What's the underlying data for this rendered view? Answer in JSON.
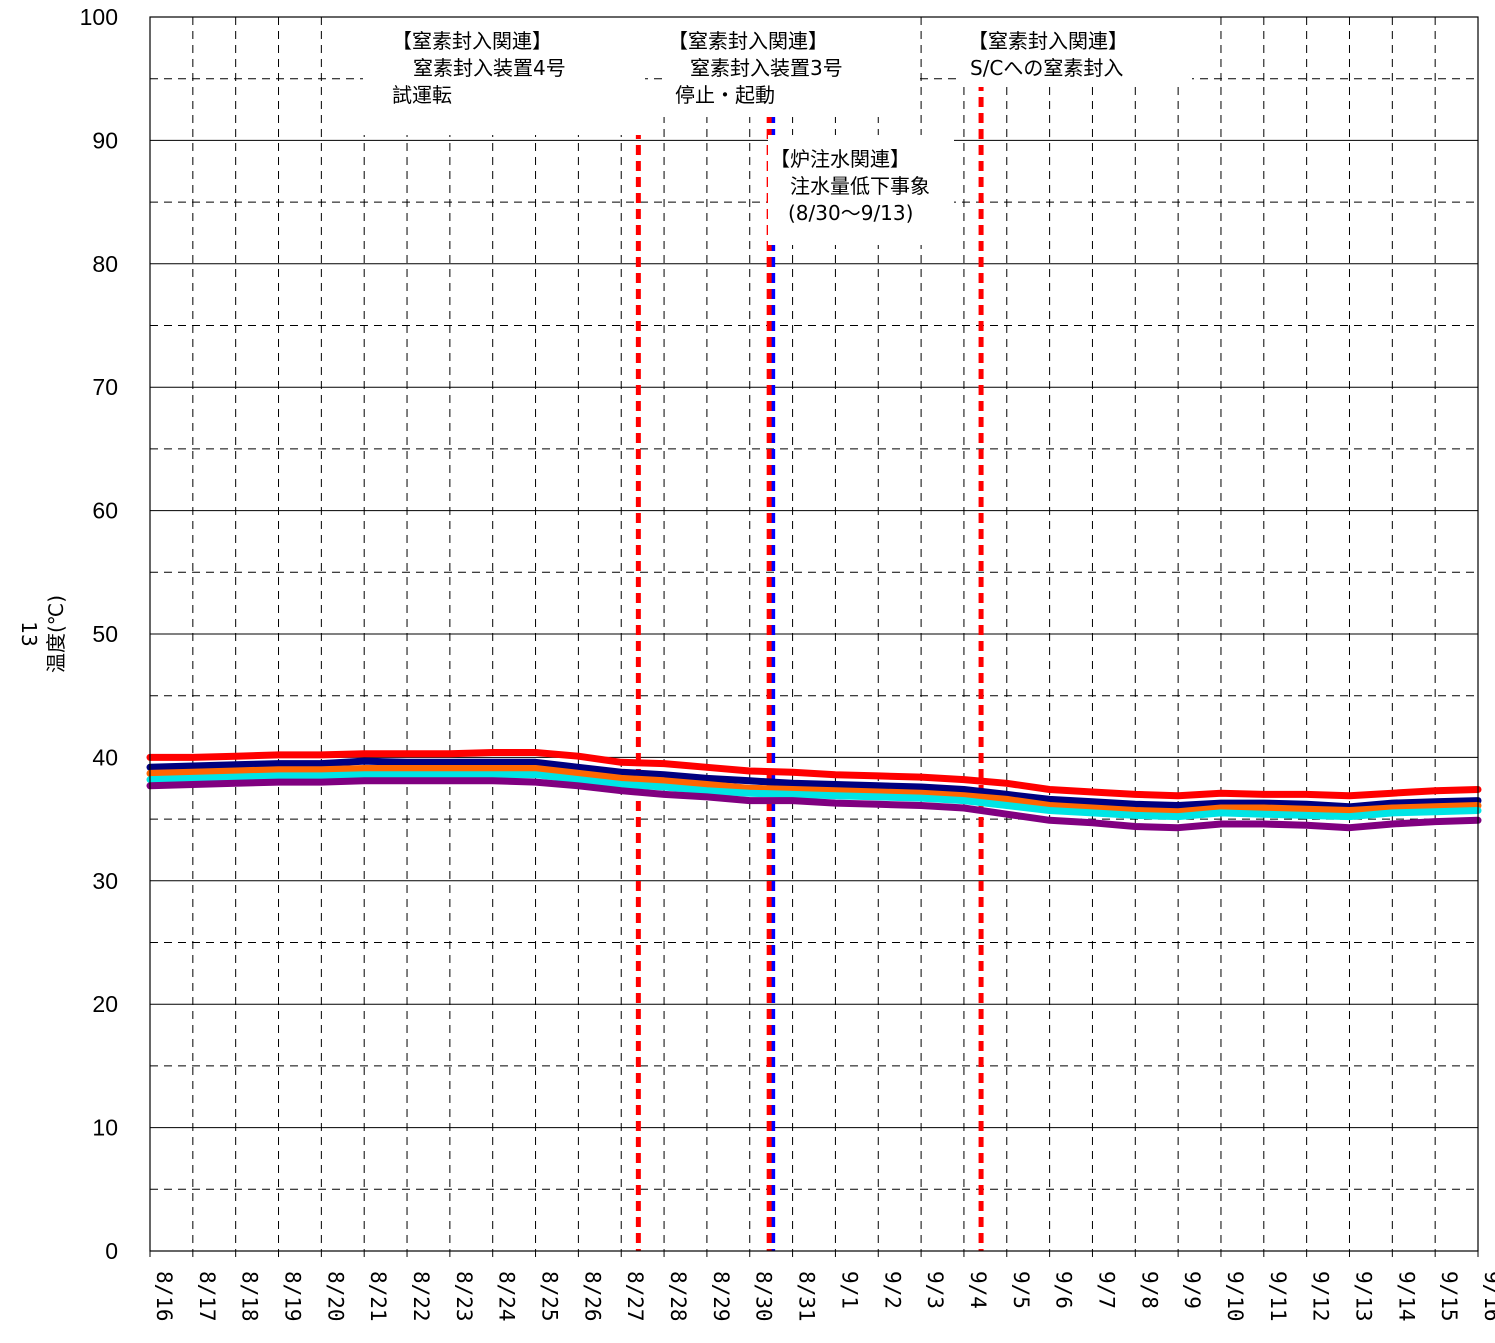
{
  "chart_data": {
    "type": "line",
    "title": "",
    "ylabel": "温度(℃)",
    "unit_number": "13",
    "ylim": [
      0,
      100
    ],
    "y_ticks": [
      "0",
      "10",
      "20",
      "30",
      "40",
      "50",
      "60",
      "70",
      "80",
      "90",
      "100"
    ],
    "x_ticks": [
      "8/16",
      "8/17",
      "8/18",
      "8/19",
      "8/20",
      "8/21",
      "8/22",
      "8/23",
      "8/24",
      "8/25",
      "8/26",
      "8/27",
      "8/28",
      "8/29",
      "8/30",
      "8/31",
      "9/1",
      "9/2",
      "9/3",
      "9/4",
      "9/5",
      "9/6",
      "9/7",
      "9/8",
      "9/9",
      "9/10",
      "9/11",
      "9/12",
      "9/13",
      "9/14",
      "9/15",
      "9/16"
    ],
    "grid": true,
    "series": [
      {
        "color": "#ff0000",
        "values": [
          40.0,
          40.0,
          40.1,
          40.2,
          40.2,
          40.3,
          40.3,
          40.3,
          40.4,
          40.4,
          40.1,
          39.6,
          39.5,
          39.2,
          38.9,
          38.8,
          38.6,
          38.5,
          38.4,
          38.2,
          37.9,
          37.4,
          37.2,
          37.0,
          36.9,
          37.1,
          37.0,
          37.0,
          36.9,
          37.1,
          37.3,
          37.4
        ]
      },
      {
        "color": "#000080",
        "values": [
          39.2,
          39.3,
          39.4,
          39.5,
          39.5,
          39.7,
          39.6,
          39.6,
          39.6,
          39.6,
          39.2,
          38.8,
          38.6,
          38.3,
          38.1,
          37.9,
          37.8,
          37.7,
          37.6,
          37.4,
          37.0,
          36.6,
          36.4,
          36.2,
          36.1,
          36.3,
          36.3,
          36.2,
          36.0,
          36.3,
          36.4,
          36.5
        ]
      },
      {
        "color": "#ff6600",
        "values": [
          38.7,
          38.8,
          38.9,
          39.0,
          39.0,
          39.1,
          39.1,
          39.1,
          39.1,
          39.1,
          38.7,
          38.3,
          38.1,
          37.8,
          37.5,
          37.4,
          37.3,
          37.2,
          37.1,
          36.9,
          36.6,
          36.1,
          35.9,
          35.7,
          35.6,
          35.9,
          35.9,
          35.8,
          35.7,
          35.9,
          36.0,
          36.1
        ]
      },
      {
        "color": "#00e5e5",
        "values": [
          38.2,
          38.3,
          38.4,
          38.5,
          38.5,
          38.6,
          38.6,
          38.6,
          38.6,
          38.6,
          38.2,
          37.8,
          37.6,
          37.3,
          37.1,
          37.0,
          36.9,
          36.8,
          36.7,
          36.5,
          36.1,
          35.7,
          35.5,
          35.3,
          35.2,
          35.5,
          35.4,
          35.3,
          35.2,
          35.5,
          35.6,
          35.7
        ]
      },
      {
        "color": "#800080",
        "values": [
          37.7,
          37.8,
          37.9,
          38.0,
          38.0,
          38.1,
          38.1,
          38.1,
          38.1,
          38.0,
          37.7,
          37.3,
          37.0,
          36.8,
          36.5,
          36.5,
          36.3,
          36.2,
          36.1,
          35.9,
          35.4,
          34.9,
          34.7,
          34.4,
          34.3,
          34.6,
          34.6,
          34.5,
          34.3,
          34.6,
          34.8,
          34.9
        ]
      }
    ],
    "events": [
      {
        "x": 11.4,
        "colors": [
          "#ff0000"
        ]
      },
      {
        "x": 14.5,
        "colors": [
          "#ff0000",
          "#0000ff"
        ]
      },
      {
        "x": 19.4,
        "colors": [
          "#ff0000"
        ]
      }
    ],
    "annotations": [
      {
        "lines": [
          "【窒素封入関連】",
          "　窒素封入装置4号",
          "試運転"
        ]
      },
      {
        "lines": [
          "【窒素封入関連】",
          "　窒素封入装置3号",
          "停止・起動"
        ]
      },
      {
        "lines": [
          "【炉注水関連】",
          "　注水量低下事象",
          "　(8/30～9/13)"
        ]
      },
      {
        "lines": [
          "【窒素封入関連】",
          "S/Cへの窒素封入"
        ]
      }
    ]
  }
}
